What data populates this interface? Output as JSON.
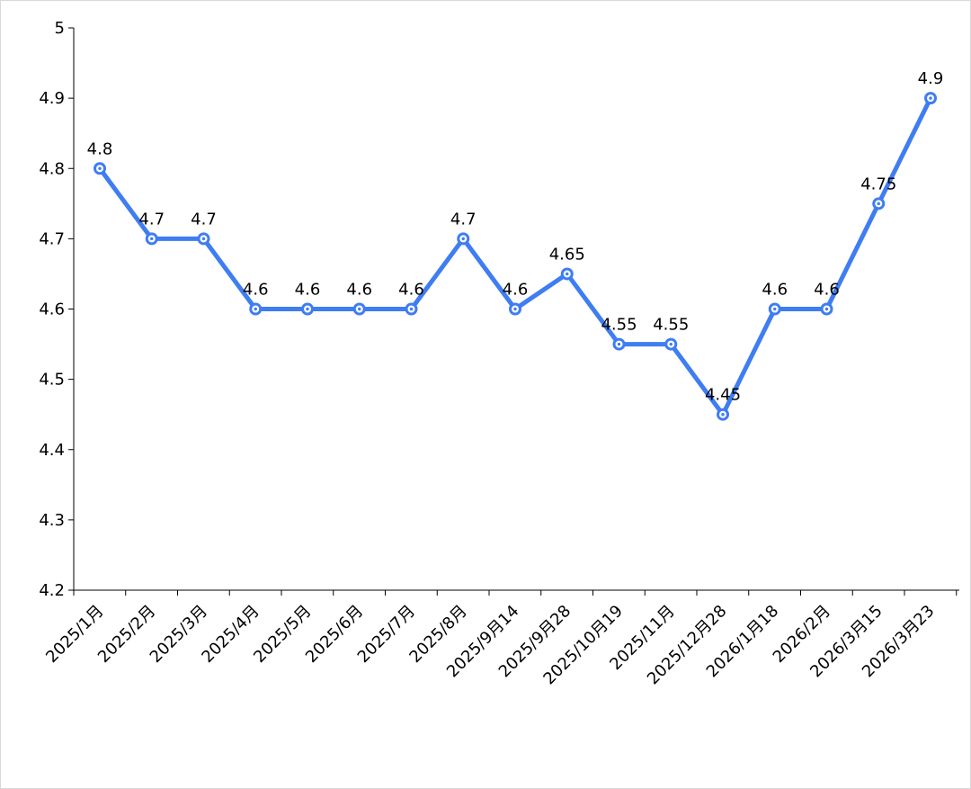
{
  "chart_data": {
    "type": "line",
    "title": "",
    "xlabel": "",
    "ylabel": "",
    "ylim": [
      4.2,
      5.0
    ],
    "yticks": [
      4.2,
      4.3,
      4.4,
      4.5,
      4.6,
      4.7,
      4.8,
      4.9,
      5.0
    ],
    "categories": [
      "2025/1月",
      "2025/2月",
      "2025/3月",
      "2025/4月",
      "2025/5月",
      "2025/6月",
      "2025/7月",
      "2025/8月",
      "2025/9月14",
      "2025/9月28",
      "2025/10月19",
      "2025/11月",
      "2025/12月28",
      "2026/1月18",
      "2026/2月",
      "2026/3月15",
      "2026/3月23"
    ],
    "series": [
      {
        "name": "",
        "values": [
          4.8,
          4.7,
          4.7,
          4.6,
          4.6,
          4.6,
          4.6,
          4.7,
          4.6,
          4.65,
          4.55,
          4.55,
          4.45,
          4.6,
          4.6,
          4.75,
          4.9
        ],
        "color": "#3F7DF2"
      }
    ],
    "grid": false,
    "legend": "none"
  }
}
